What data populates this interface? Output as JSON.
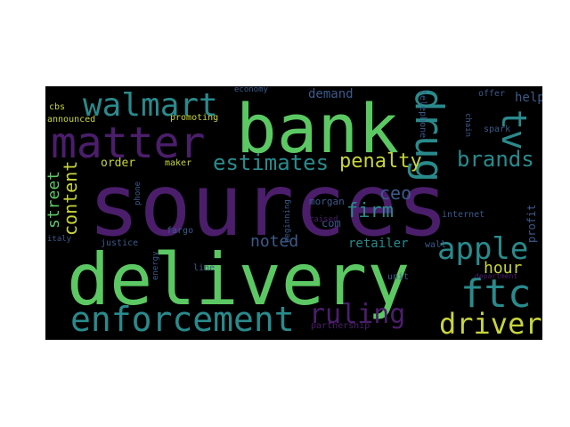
{
  "word_cloud": {
    "palette": {
      "background": "#000000",
      "purple": "#4b1e6b",
      "green": "#5cc863",
      "teal": "#2a8a8c",
      "yellow": "#c8d43c",
      "blue": "#3c5a8c"
    },
    "words": [
      {
        "text": "sources",
        "color": "#4b1e6b"
      },
      {
        "text": "bank",
        "color": "#5cc863"
      },
      {
        "text": "delivery",
        "color": "#5cc863"
      },
      {
        "text": "matter",
        "color": "#4b1e6b"
      },
      {
        "text": "walmart",
        "color": "#2a8a8c"
      },
      {
        "text": "enforcement",
        "color": "#2a8a8c"
      },
      {
        "text": "drug",
        "color": "#2a8a8c"
      },
      {
        "text": "tv",
        "color": "#2a8a8c"
      },
      {
        "text": "ftc",
        "color": "#2a8a8c"
      },
      {
        "text": "apple",
        "color": "#2a8a8c"
      },
      {
        "text": "drivers",
        "color": "#c8d43c"
      },
      {
        "text": "ruling",
        "color": "#4b1e6b"
      },
      {
        "text": "estimates",
        "color": "#2a8a8c"
      },
      {
        "text": "brands",
        "color": "#2a8a8c"
      },
      {
        "text": "penalty",
        "color": "#c8d43c"
      },
      {
        "text": "content",
        "color": "#c8d43c"
      },
      {
        "text": "street",
        "color": "#5cc863"
      },
      {
        "text": "firm",
        "color": "#2a8a8c"
      },
      {
        "text": "ceo",
        "color": "#3c5a8c"
      },
      {
        "text": "noted",
        "color": "#3c5a8c"
      },
      {
        "text": "hour",
        "color": "#c8d43c"
      },
      {
        "text": "order",
        "color": "#c8d43c"
      },
      {
        "text": "retailer",
        "color": "#2a8a8c"
      },
      {
        "text": "demand",
        "color": "#3c5a8c"
      },
      {
        "text": "help",
        "color": "#3c5a8c"
      },
      {
        "text": "profit",
        "color": "#3c5a8c"
      },
      {
        "text": "com",
        "color": "#3c5a8c"
      },
      {
        "text": "maker",
        "color": "#c8d43c"
      },
      {
        "text": "announced",
        "color": "#c8d43c"
      },
      {
        "text": "promoting",
        "color": "#c8d43c"
      },
      {
        "text": "cbs",
        "color": "#c8d43c"
      },
      {
        "text": "economy",
        "color": "#3c5a8c"
      },
      {
        "text": "offer",
        "color": "#3c5a8c"
      },
      {
        "text": "telephone",
        "color": "#3c5a8c"
      },
      {
        "text": "chain",
        "color": "#3c5a8c"
      },
      {
        "text": "spark",
        "color": "#3c5a8c"
      },
      {
        "text": "morgan",
        "color": "#3c5a8c"
      },
      {
        "text": "beginning",
        "color": "#3c5a8c"
      },
      {
        "text": "internet",
        "color": "#3c5a8c"
      },
      {
        "text": "justice",
        "color": "#3c5a8c"
      },
      {
        "text": "fargo",
        "color": "#3c5a8c"
      },
      {
        "text": "phone",
        "color": "#3c5a8c"
      },
      {
        "text": "energy",
        "color": "#3c5a8c"
      },
      {
        "text": "line",
        "color": "#3c5a8c"
      },
      {
        "text": "unit",
        "color": "#3c5a8c"
      },
      {
        "text": "wall",
        "color": "#3c5a8c"
      },
      {
        "text": "italy",
        "color": "#3c5a8c"
      },
      {
        "text": "raised",
        "color": "#4b1e6b"
      },
      {
        "text": "partnership",
        "color": "#4b1e6b"
      },
      {
        "text": "department",
        "color": "#4b1e6b"
      }
    ]
  }
}
